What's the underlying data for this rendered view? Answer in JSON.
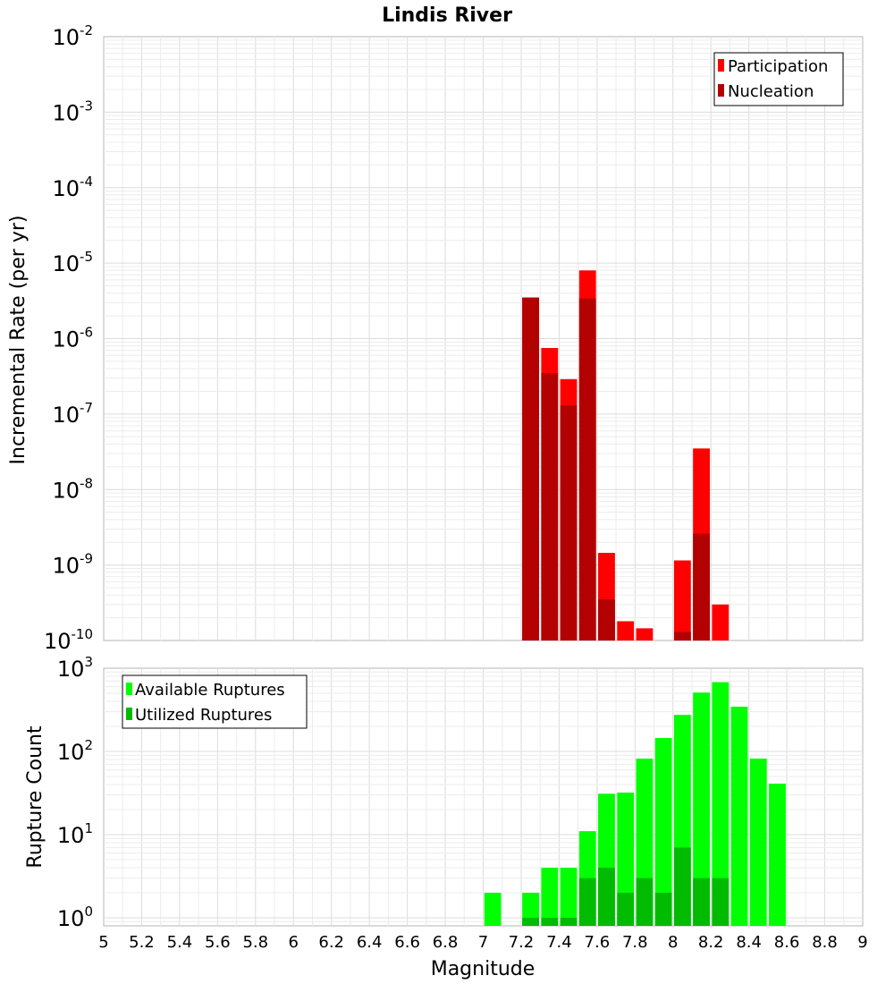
{
  "chart_data": [
    {
      "type": "bar",
      "title": "Lindis River",
      "xlabel": "",
      "ylabel": "Incremental Rate (per yr)",
      "y_scale": "log",
      "ylim": [
        1e-10,
        0.01
      ],
      "y_tick_bases": [
        "10",
        "10",
        "10",
        "10",
        "10",
        "10",
        "10",
        "10",
        "10"
      ],
      "y_tick_exponents": [
        "-10",
        "-9",
        "-8",
        "-7",
        "-6",
        "-5",
        "-4",
        "-3",
        "-2"
      ],
      "xlim": [
        5,
        9
      ],
      "bin_width": 0.1,
      "grid": true,
      "legend_position": "top-right",
      "series": [
        {
          "name": "Participation",
          "color": "#ff0000",
          "x": [
            7.25,
            7.35,
            7.45,
            7.55,
            7.65,
            7.75,
            7.85,
            8.05,
            8.15,
            8.25
          ],
          "values": [
            3.5e-06,
            7.5e-07,
            2.9e-07,
            8e-06,
            1.45e-09,
            1.8e-10,
            1.45e-10,
            1.15e-09,
            3.5e-08,
            3e-10
          ]
        },
        {
          "name": "Nucleation",
          "color": "#b30000",
          "x": [
            7.25,
            7.35,
            7.45,
            7.55,
            7.65,
            8.05,
            8.15
          ],
          "values": [
            3.5e-06,
            3.5e-07,
            1.3e-07,
            3.4e-06,
            3.5e-10,
            1.3e-10,
            2.6e-09
          ]
        }
      ]
    },
    {
      "type": "bar",
      "title": "",
      "xlabel": "Magnitude",
      "ylabel": "Rupture Count",
      "y_scale": "log",
      "ylim": [
        0.8,
        1000
      ],
      "y_tick_values": [
        1,
        10,
        100,
        1000
      ],
      "y_tick_bases": [
        "10",
        "10",
        "10",
        "10"
      ],
      "y_tick_exponents": [
        "0",
        "1",
        "2",
        "3"
      ],
      "xlim": [
        5,
        9
      ],
      "x_tick_values": [
        5,
        5.2,
        5.4,
        5.6,
        5.8,
        6,
        6.2,
        6.4,
        6.6,
        6.8,
        7,
        7.2,
        7.4,
        7.6,
        7.8,
        8,
        8.2,
        8.4,
        8.6,
        8.8,
        9
      ],
      "x_tick_labels": [
        "5",
        "5.2",
        "5.4",
        "5.6",
        "5.8",
        "6",
        "6.2",
        "6.4",
        "6.6",
        "6.8",
        "7",
        "7.2",
        "7.4",
        "7.6",
        "7.8",
        "8",
        "8.2",
        "8.4",
        "8.6",
        "8.8",
        "9"
      ],
      "bin_width": 0.1,
      "grid": true,
      "legend_position": "top-left",
      "series": [
        {
          "name": "Available Ruptures",
          "color": "#00ff00",
          "x": [
            7.05,
            7.25,
            7.35,
            7.45,
            7.55,
            7.65,
            7.75,
            7.85,
            7.95,
            8.05,
            8.15,
            8.25,
            8.35,
            8.45,
            8.55
          ],
          "values": [
            2,
            2,
            4,
            4,
            11,
            31,
            32,
            82,
            145,
            275,
            510,
            680,
            345,
            82,
            41
          ]
        },
        {
          "name": "Utilized Ruptures",
          "color": "#00bb00",
          "x": [
            7.25,
            7.35,
            7.45,
            7.55,
            7.65,
            7.75,
            7.85,
            7.95,
            8.05,
            8.15,
            8.25
          ],
          "values": [
            1,
            1,
            1,
            3,
            4,
            2,
            3,
            2,
            7,
            3,
            3
          ]
        }
      ]
    }
  ]
}
